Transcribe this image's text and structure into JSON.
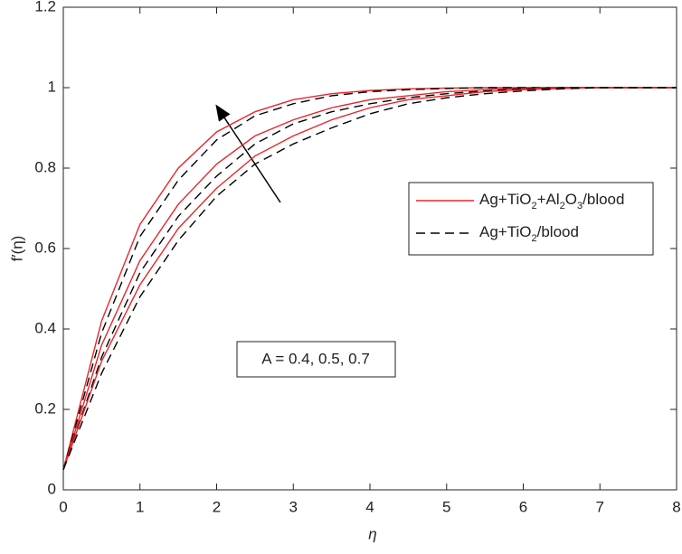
{
  "chart_data": {
    "type": "line",
    "x_label": "η",
    "y_label": "f′(η)",
    "annotation": "A = 0.4, 0.5, 0.7",
    "x": [
      0,
      0.5,
      1,
      1.5,
      2,
      2.5,
      3,
      3.5,
      4,
      4.5,
      5,
      5.5,
      6,
      6.5,
      7,
      7.5,
      8
    ],
    "series": [
      {
        "name": "Ag+TiO2+Al2O3/blood",
        "color": "#e8262b",
        "style": "solid",
        "values": [
          0.05,
          0.42,
          0.66,
          0.8,
          0.89,
          0.94,
          0.97,
          0.985,
          0.993,
          0.997,
          0.999,
          1,
          1,
          1,
          1,
          1,
          1
        ]
      },
      {
        "name": "Ag+TiO2/blood",
        "color": "#000000",
        "style": "dashed",
        "values": [
          0.05,
          0.39,
          0.63,
          0.77,
          0.87,
          0.93,
          0.96,
          0.98,
          0.99,
          0.995,
          0.998,
          1,
          1,
          1,
          1,
          1,
          1
        ]
      },
      {
        "name": "Ag+TiO2+Al2O3/blood",
        "color": "#e8262b",
        "style": "solid",
        "values": [
          0.05,
          0.36,
          0.57,
          0.71,
          0.81,
          0.88,
          0.92,
          0.95,
          0.97,
          0.98,
          0.99,
          0.995,
          0.998,
          1,
          1,
          1,
          1
        ]
      },
      {
        "name": "Ag+TiO2/blood",
        "color": "#000000",
        "style": "dashed",
        "values": [
          0.05,
          0.33,
          0.54,
          0.68,
          0.78,
          0.86,
          0.91,
          0.94,
          0.96,
          0.975,
          0.985,
          0.992,
          0.997,
          1,
          1,
          1,
          1
        ]
      },
      {
        "name": "Ag+TiO2+Al2O3/blood",
        "color": "#e8262b",
        "style": "solid",
        "values": [
          0.05,
          0.32,
          0.51,
          0.65,
          0.75,
          0.83,
          0.88,
          0.92,
          0.95,
          0.97,
          0.98,
          0.99,
          0.995,
          0.998,
          1,
          1,
          1
        ]
      },
      {
        "name": "Ag+TiO2/blood",
        "color": "#000000",
        "style": "dashed",
        "values": [
          0.05,
          0.29,
          0.48,
          0.62,
          0.73,
          0.81,
          0.86,
          0.9,
          0.935,
          0.96,
          0.975,
          0.985,
          0.992,
          0.997,
          1,
          1,
          1
        ]
      }
    ],
    "xlim": [
      0,
      8
    ],
    "xticks": [
      0,
      1,
      2,
      3,
      4,
      5,
      6,
      7,
      8
    ],
    "ylim": [
      0,
      1.2
    ],
    "yticks": [
      0,
      0.2,
      0.4,
      0.6,
      0.8,
      1,
      1.2
    ],
    "grid": false,
    "legend": "right"
  }
}
